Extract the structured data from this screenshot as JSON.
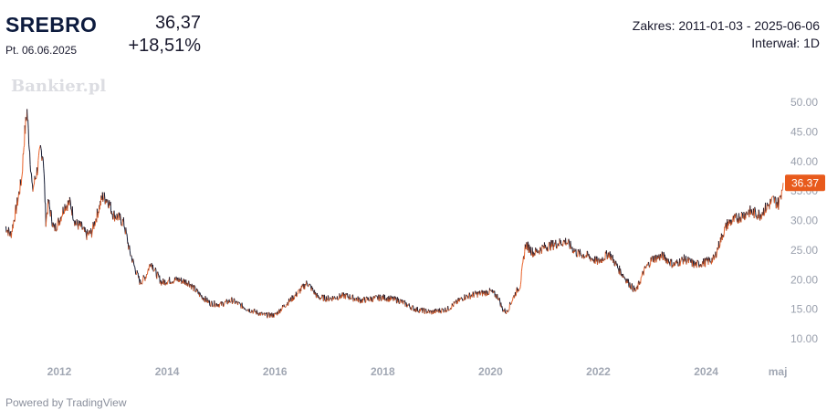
{
  "header": {
    "symbol": "SREBRO",
    "date": "Pt. 06.06.2025",
    "price": "36,37",
    "change": "+18,51%",
    "range": "Zakres: 2011-01-03 - 2025-06-06",
    "interval": "Interwał: 1D"
  },
  "watermark": "Bankier.pl",
  "footer": {
    "powered_by": "Powered by TradingView"
  },
  "colors": {
    "up": "#e8622a",
    "down": "#141b33",
    "last_price_bg": "#e85a1c"
  },
  "chart_data": {
    "type": "line",
    "series": [
      {
        "x": [
          2011.0,
          2011.1,
          2011.2,
          2011.3,
          2011.35,
          2011.4,
          2011.5,
          2011.6,
          2011.65,
          2011.7,
          2011.75,
          2011.8,
          2011.9,
          2012.0,
          2012.1,
          2012.2,
          2012.3,
          2012.4,
          2012.5,
          2012.6,
          2012.7,
          2012.8,
          2012.9,
          2013.0,
          2013.1,
          2013.2,
          2013.3,
          2013.4,
          2013.5,
          2013.6,
          2013.7,
          2013.8,
          2013.9,
          2014.0,
          2014.2,
          2014.4,
          2014.6,
          2014.8,
          2015.0,
          2015.2,
          2015.5,
          2015.8,
          2016.0,
          2016.2,
          2016.4,
          2016.6,
          2016.8,
          2017.0,
          2017.3,
          2017.6,
          2018.0,
          2018.3,
          2018.6,
          2018.9,
          2019.2,
          2019.5,
          2019.7,
          2019.9,
          2020.0,
          2020.15,
          2020.22,
          2020.3,
          2020.45,
          2020.55,
          2020.65,
          2020.8,
          2021.0,
          2021.2,
          2021.4,
          2021.6,
          2021.8,
          2022.0,
          2022.2,
          2022.4,
          2022.6,
          2022.7,
          2022.85,
          2023.0,
          2023.2,
          2023.4,
          2023.6,
          2023.8,
          2024.0,
          2024.15,
          2024.3,
          2024.4,
          2024.6,
          2024.8,
          2025.0,
          2025.15,
          2025.25,
          2025.35,
          2025.43
        ],
        "y": [
          29.0,
          27.5,
          32.0,
          37.0,
          44.0,
          48.5,
          35.0,
          39.0,
          42.0,
          41.0,
          30.0,
          33.0,
          28.5,
          30.0,
          32.5,
          33.0,
          29.5,
          29.0,
          27.5,
          28.0,
          31.0,
          34.0,
          33.5,
          31.0,
          30.5,
          29.5,
          25.0,
          22.0,
          19.5,
          20.5,
          23.0,
          21.0,
          19.5,
          19.8,
          20.0,
          19.5,
          17.5,
          16.0,
          15.8,
          16.5,
          15.0,
          14.0,
          14.0,
          15.8,
          17.5,
          19.5,
          17.0,
          16.8,
          17.3,
          16.5,
          17.0,
          16.5,
          15.0,
          14.5,
          15.0,
          17.0,
          17.5,
          17.8,
          18.0,
          17.0,
          15.0,
          14.5,
          17.5,
          19.0,
          26.0,
          24.5,
          25.5,
          26.0,
          26.5,
          24.5,
          24.0,
          23.0,
          24.5,
          21.5,
          19.0,
          18.0,
          21.5,
          23.5,
          24.0,
          22.5,
          23.5,
          22.5,
          23.0,
          23.5,
          27.5,
          29.5,
          30.5,
          31.5,
          31.0,
          32.5,
          33.5,
          32.8,
          36.37
        ]
      }
    ],
    "ylim": [
      7.5,
      51.5
    ],
    "yticks": [
      "50.00",
      "45.00",
      "40.00",
      "35.00",
      "30.00",
      "25.00",
      "20.00",
      "15.00",
      "10.00"
    ],
    "ytick_values": [
      50,
      45,
      40,
      35,
      30,
      25,
      20,
      15,
      10
    ],
    "xlim": [
      2011.0,
      2025.43
    ],
    "xticks": [
      "2012",
      "2014",
      "2016",
      "2018",
      "2020",
      "2022",
      "2024",
      "maj"
    ],
    "xtick_values": [
      2012.0,
      2014.0,
      2016.0,
      2018.0,
      2020.0,
      2022.0,
      2024.0,
      2025.33
    ],
    "last_value_label": "36.37",
    "last_value": 36.37,
    "grid": false,
    "legend": "none"
  }
}
